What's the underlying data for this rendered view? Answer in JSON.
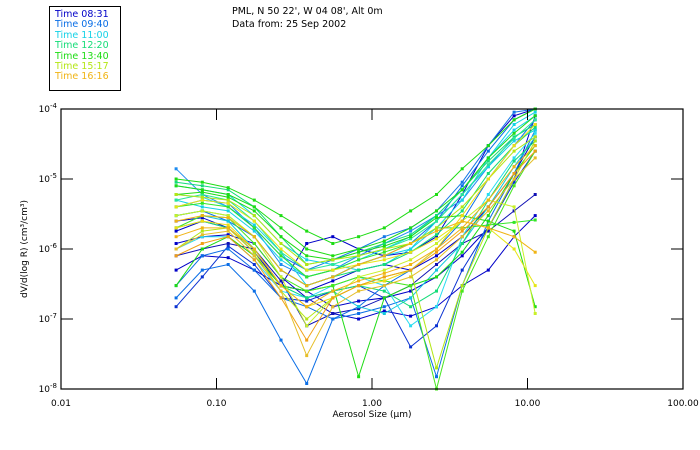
{
  "header": {
    "location": "PML, N 50 22', W 04 08', Alt 0m",
    "date_line": "Data from: 25 Sep 2002"
  },
  "legend": {
    "items": [
      {
        "label": "Time 08:31",
        "color": "#0000c8"
      },
      {
        "label": "Time 09:40",
        "color": "#0a6ee6"
      },
      {
        "label": "Time 11:00",
        "color": "#14d2e6"
      },
      {
        "label": "Time 12:20",
        "color": "#14dc78"
      },
      {
        "label": "Time 13:40",
        "color": "#1edc14"
      },
      {
        "label": "Time 15:17",
        "color": "#b4e614"
      },
      {
        "label": "Time 16:16",
        "color": "#f0b414"
      }
    ]
  },
  "chart_data": {
    "type": "line",
    "title": "PML, N 50 22', W 04 08', Alt 0m — Data from: 25 Sep 2002",
    "xlabel": "Aerosol Size (μm)",
    "ylabel": "dV/d(log R) (cm³/cm³)",
    "xscale": "log",
    "yscale": "log",
    "xlim": [
      0.01,
      100
    ],
    "ylim": [
      1e-08,
      0.0001
    ],
    "grid": false,
    "legend_position": "top-left (outside plot)",
    "x_ticks": [
      {
        "value": 0.01,
        "label": "0.01"
      },
      {
        "value": 0.1,
        "label": "0.10"
      },
      {
        "value": 1,
        "label": "1.00"
      },
      {
        "value": 10,
        "label": "10.00"
      },
      {
        "value": 100,
        "label": "100.00"
      }
    ],
    "y_ticks": [
      {
        "value": 0.0001,
        "base": "10",
        "exp": "-4"
      },
      {
        "value": 1e-05,
        "base": "10",
        "exp": "-5"
      },
      {
        "value": 1e-06,
        "base": "10",
        "exp": "-6"
      },
      {
        "value": 1e-07,
        "base": "10",
        "exp": "-7"
      },
      {
        "value": 1e-08,
        "base": "10",
        "exp": "-8"
      }
    ],
    "x": [
      0.055,
      0.081,
      0.119,
      0.175,
      0.26,
      0.38,
      0.56,
      0.82,
      1.2,
      1.77,
      2.6,
      3.8,
      5.6,
      8.2,
      11.2
    ],
    "series": [
      {
        "name": "08:31 a",
        "color": "#0000c8",
        "values": [
          5e-07,
          8e-07,
          7.5e-07,
          5e-07,
          3e-07,
          2.5e-07,
          1.5e-07,
          1.8e-07,
          2e-07,
          2.5e-07,
          4e-07,
          8e-07,
          2e-06,
          1e-05,
          8e-05
        ]
      },
      {
        "name": "08:31 b",
        "color": "#0000c8",
        "values": [
          1.2e-06,
          1.5e-06,
          1.6e-06,
          1.2e-06,
          4e-07,
          2e-07,
          1.2e-07,
          1e-07,
          1.3e-07,
          1.1e-07,
          1.5e-07,
          3e-07,
          5e-07,
          1.5e-06,
          3e-06
        ]
      },
      {
        "name": "08:31 c",
        "color": "#1010b4",
        "values": [
          8e-07,
          1e-06,
          1.2e-06,
          1e-06,
          3.5e-07,
          8e-08,
          1.2e-07,
          1.4e-07,
          2e-07,
          3e-07,
          6e-07,
          1.2e-06,
          1.8e-06,
          3.5e-06,
          6e-06
        ]
      },
      {
        "name": "08:31 d",
        "color": "#0000c8",
        "values": [
          2.5e-06,
          2.8e-06,
          2e-06,
          1e-06,
          3e-07,
          2.5e-07,
          3.5e-07,
          5e-07,
          6e-07,
          5e-07,
          8e-07,
          1.5e-06,
          4e-06,
          1.2e-05,
          4e-05
        ]
      },
      {
        "name": "08:31 e",
        "color": "#0a32d2",
        "values": [
          1.5e-07,
          4e-07,
          1.1e-06,
          6e-07,
          2e-07,
          1.8e-07,
          2.5e-07,
          3e-07,
          2e-07,
          4e-08,
          8e-08,
          5e-07,
          2e-06,
          9e-06,
          2.5e-05
        ]
      },
      {
        "name": "08:31 f",
        "color": "#0000c8",
        "values": [
          1.8e-06,
          2.5e-06,
          2e-06,
          9e-07,
          3e-07,
          1.2e-06,
          1.5e-06,
          1e-06,
          8e-07,
          9e-07,
          1.5e-06,
          6e-06,
          3e-05,
          8e-05,
          0.0001
        ]
      },
      {
        "name": "09:40 a",
        "color": "#0a6ee6",
        "values": [
          2e-07,
          5e-07,
          6e-07,
          2.5e-07,
          5e-08,
          1.2e-08,
          1e-07,
          1.5e-07,
          3e-07,
          5e-07,
          1e-06,
          2.5e-06,
          1e-05,
          3e-05,
          7e-05
        ]
      },
      {
        "name": "09:40 b",
        "color": "#0a6ee6",
        "values": [
          3e-06,
          3.5e-06,
          2.5e-06,
          1.5e-06,
          5e-07,
          3e-07,
          4e-07,
          6e-07,
          8e-07,
          1.2e-06,
          2.5e-06,
          8e-06,
          2.5e-05,
          7e-05,
          0.0001
        ]
      },
      {
        "name": "09:40 c",
        "color": "#1e8cf0",
        "values": [
          1.4e-05,
          6e-06,
          4e-06,
          2e-06,
          6e-07,
          4e-07,
          5e-07,
          8e-07,
          1.2e-06,
          1.8e-06,
          3e-06,
          5e-06,
          1.5e-05,
          4e-05,
          6e-05
        ]
      },
      {
        "name": "09:40 d",
        "color": "#0a6ee6",
        "values": [
          3e-07,
          8e-07,
          1e-06,
          5e-07,
          2e-07,
          1.5e-07,
          1e-07,
          1.2e-07,
          1.5e-07,
          2e-07,
          1.5e-08,
          3e-07,
          2.5e-06,
          1.2e-05,
          5e-05
        ]
      },
      {
        "name": "09:40 e",
        "color": "#1478e6",
        "values": [
          4e-06,
          5e-06,
          4.5e-06,
          2e-06,
          8e-07,
          5e-07,
          7e-07,
          1e-06,
          1.5e-06,
          2e-06,
          3.5e-06,
          9e-06,
          3e-05,
          9e-05,
          0.0001
        ]
      },
      {
        "name": "11:00 a",
        "color": "#14d2e6",
        "values": [
          6e-06,
          5.5e-06,
          4e-06,
          2.2e-06,
          9e-07,
          3e-07,
          4e-07,
          6e-07,
          8e-07,
          1e-06,
          2e-06,
          5e-06,
          2e-05,
          6e-05,
          9e-05
        ]
      },
      {
        "name": "11:00 b",
        "color": "#14c8dc",
        "values": [
          2e-06,
          3e-06,
          2.5e-06,
          1e-06,
          3e-07,
          2e-07,
          2.5e-07,
          1.5e-07,
          1.2e-07,
          2e-07,
          5e-07,
          1.2e-06,
          4e-06,
          1.5e-05,
          4e-05
        ]
      },
      {
        "name": "11:00 c",
        "color": "#14d2e6",
        "values": [
          8e-06,
          7e-06,
          6e-06,
          3e-06,
          1.2e-06,
          7e-07,
          6e-07,
          5e-07,
          6e-07,
          1e-06,
          2.5e-06,
          6e-06,
          1.5e-05,
          3.5e-05,
          5e-05
        ]
      },
      {
        "name": "11:00 d",
        "color": "#28dcf0",
        "values": [
          1e-06,
          1.5e-06,
          1.5e-06,
          7e-07,
          2.5e-07,
          2e-07,
          3e-07,
          4e-07,
          3e-07,
          8e-08,
          1.5e-07,
          1.5e-06,
          6e-06,
          2e-05,
          4.5e-05
        ]
      },
      {
        "name": "11:00 e",
        "color": "#14d2e6",
        "values": [
          5e-06,
          4e-06,
          3.5e-06,
          1.8e-06,
          7e-07,
          4e-07,
          5e-07,
          7e-07,
          1e-06,
          1.5e-06,
          3e-06,
          7e-06,
          2e-05,
          5e-05,
          8e-05
        ]
      },
      {
        "name": "12:20 a",
        "color": "#14dc78",
        "values": [
          9e-06,
          8e-06,
          7e-06,
          4e-06,
          1.5e-06,
          6e-07,
          7e-07,
          9e-07,
          1.2e-06,
          1.6e-06,
          3e-06,
          7e-06,
          1.8e-05,
          4e-05,
          6e-05
        ]
      },
      {
        "name": "12:20 b",
        "color": "#14dc78",
        "values": [
          3e-06,
          3.5e-06,
          3e-06,
          1.5e-06,
          5e-07,
          3e-07,
          4e-07,
          5e-07,
          6e-07,
          9e-07,
          1.6e-06,
          3.5e-06,
          1.2e-05,
          3e-05,
          5.5e-05
        ]
      },
      {
        "name": "12:20 c",
        "color": "#28e696",
        "values": [
          5e-06,
          6e-06,
          5e-06,
          2.5e-06,
          9e-07,
          5e-07,
          6e-07,
          8e-07,
          1e-06,
          1.4e-06,
          2.5e-06,
          6e-06,
          1.6e-05,
          3.8e-05,
          7e-05
        ]
      },
      {
        "name": "12:20 d",
        "color": "#14dc78",
        "values": [
          2e-06,
          2.5e-06,
          2e-06,
          1e-06,
          3e-07,
          2e-07,
          2.5e-07,
          3e-07,
          2.5e-07,
          1.5e-07,
          2.5e-07,
          1.2e-06,
          5e-06,
          1.8e-05,
          3.5e-05
        ]
      },
      {
        "name": "13:40 a",
        "color": "#1edc14",
        "values": [
          1e-05,
          9e-06,
          7.5e-06,
          5e-06,
          3e-06,
          1.8e-06,
          1.2e-06,
          1.5e-06,
          2e-06,
          3.5e-06,
          6e-06,
          1.4e-05,
          3e-05,
          7e-05,
          0.0001
        ]
      },
      {
        "name": "13:40 b",
        "color": "#1edc14",
        "values": [
          8e-06,
          7e-06,
          6e-06,
          4e-06,
          2e-06,
          1e-06,
          8e-07,
          1e-06,
          1.3e-06,
          2e-06,
          3.5e-06,
          7e-06,
          2e-05,
          4.5e-05,
          8e-05
        ]
      },
      {
        "name": "13:40 c",
        "color": "#32e628",
        "values": [
          4e-06,
          4.5e-06,
          4e-06,
          2e-06,
          8e-07,
          4e-07,
          5e-07,
          7e-07,
          9e-07,
          1.2e-06,
          2e-06,
          2e-06,
          2.2e-06,
          2.4e-06,
          2.6e-06
        ]
      },
      {
        "name": "13:40 d",
        "color": "#1edc14",
        "values": [
          3e-07,
          1e-06,
          1.5e-06,
          8e-07,
          3e-07,
          2.5e-07,
          3e-07,
          1.5e-08,
          2e-07,
          3e-07,
          4e-07,
          9e-07,
          3e-06,
          1.2e-05,
          3e-05
        ]
      },
      {
        "name": "13:40 e",
        "color": "#1edc14",
        "values": [
          6e-06,
          6.5e-06,
          5.5e-06,
          3.5e-06,
          1.5e-06,
          8e-07,
          7e-07,
          9e-07,
          1.1e-06,
          1.5e-06,
          2.8e-06,
          3e-06,
          2.5e-06,
          1.8e-06,
          1.5e-07
        ]
      },
      {
        "name": "13:40 f",
        "color": "#46e61e",
        "values": [
          2e-06,
          3e-06,
          2.8e-06,
          1.2e-06,
          4e-07,
          2.5e-07,
          3e-07,
          4e-07,
          3.5e-07,
          3e-07,
          1e-08,
          2.5e-07,
          1.5e-06,
          8e-06,
          2.5e-05
        ]
      },
      {
        "name": "15:17 a",
        "color": "#b4e614",
        "values": [
          6e-06,
          5.5e-06,
          5e-06,
          3e-06,
          1.2e-06,
          6e-07,
          7e-07,
          8e-07,
          1e-06,
          1.2e-06,
          2e-06,
          4e-06,
          1e-05,
          2.5e-05,
          4e-05
        ]
      },
      {
        "name": "15:17 b",
        "color": "#c8f028",
        "values": [
          3e-06,
          3.5e-06,
          3e-06,
          1.5e-06,
          4e-07,
          8e-08,
          2e-07,
          4e-07,
          5e-07,
          7e-07,
          1.2e-06,
          2.5e-06,
          5e-06,
          4e-06,
          1.2e-07
        ]
      },
      {
        "name": "15:17 c",
        "color": "#e6e614",
        "values": [
          4e-06,
          5e-06,
          4.5e-06,
          2.5e-06,
          1e-06,
          5e-07,
          5e-07,
          6e-07,
          7e-07,
          9e-07,
          1.4e-06,
          2.5e-06,
          2e-06,
          1e-06,
          3e-07
        ]
      },
      {
        "name": "15:17 d",
        "color": "#f0dc14",
        "values": [
          2e-06,
          2.5e-06,
          2.2e-06,
          1e-06,
          3e-07,
          1.5e-07,
          2e-07,
          3e-07,
          3.5e-07,
          5e-07,
          1e-06,
          3e-06,
          1e-05,
          3e-05,
          6e-05
        ]
      },
      {
        "name": "15:17 e",
        "color": "#b4e614",
        "values": [
          1e-06,
          1.8e-06,
          2e-06,
          9e-07,
          2.5e-07,
          1e-07,
          2e-07,
          3e-07,
          4e-07,
          5e-07,
          2e-08,
          3e-07,
          2e-06,
          1e-05,
          3.5e-05
        ]
      },
      {
        "name": "16:16 a",
        "color": "#f0b414",
        "values": [
          1.5e-06,
          2e-06,
          2e-06,
          1e-06,
          3e-07,
          1.5e-07,
          2.5e-07,
          3.5e-07,
          4.5e-07,
          6e-07,
          1e-06,
          2e-06,
          5e-06,
          1.5e-05,
          3e-05
        ]
      },
      {
        "name": "16:16 b",
        "color": "#f0a014",
        "values": [
          8e-07,
          1.2e-06,
          1.5e-06,
          7e-07,
          2e-07,
          5e-08,
          2e-07,
          3e-07,
          4e-07,
          5e-07,
          9e-07,
          1.8e-06,
          4e-06,
          1.2e-05,
          2.5e-05
        ]
      },
      {
        "name": "16:16 c",
        "color": "#f0b414",
        "values": [
          2.5e-06,
          3e-06,
          2.8e-06,
          1.5e-06,
          5e-07,
          3e-07,
          4e-07,
          6e-07,
          8e-07,
          1.2e-06,
          1.8e-06,
          2.5e-06,
          2e-06,
          1.5e-06,
          9e-07
        ]
      },
      {
        "name": "16:16 d",
        "color": "#e6be28",
        "values": [
          1e-06,
          1.6e-06,
          1.8e-06,
          8e-07,
          2.5e-07,
          3e-08,
          1.5e-07,
          2.5e-07,
          3e-07,
          4e-07,
          7e-07,
          1.5e-06,
          3.5e-06,
          1e-05,
          2e-05
        ]
      }
    ]
  }
}
